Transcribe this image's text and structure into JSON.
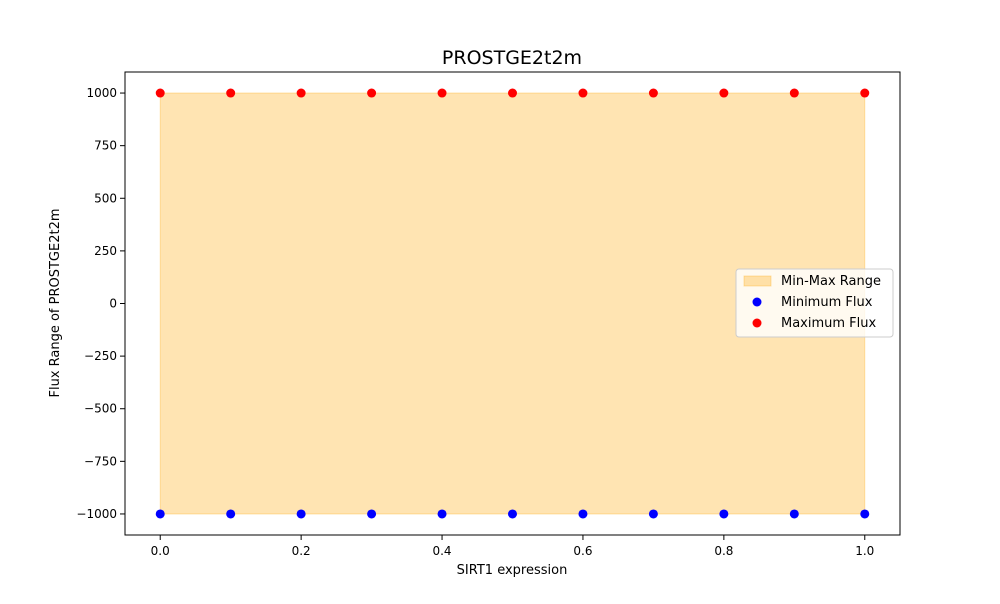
{
  "chart_data": {
    "type": "scatter",
    "title": "PROSTGE2t2m",
    "xlabel": "SIRT1 expression",
    "ylabel": "Flux Range of PROSTGE2t2m",
    "xlim": [
      -0.05,
      1.05
    ],
    "ylim": [
      -1100,
      1100
    ],
    "x_ticks": [
      0.0,
      0.2,
      0.4,
      0.6,
      0.8,
      1.0
    ],
    "x_tick_labels": [
      "0.0",
      "0.2",
      "0.4",
      "0.6",
      "0.8",
      "1.0"
    ],
    "y_ticks": [
      -1000,
      -750,
      -500,
      -250,
      0,
      250,
      500,
      750,
      1000
    ],
    "y_tick_labels": [
      "−1000",
      "−750",
      "−500",
      "−250",
      "0",
      "250",
      "500",
      "750",
      "1000"
    ],
    "x": [
      0.0,
      0.1,
      0.2,
      0.3,
      0.4,
      0.5,
      0.6,
      0.7,
      0.8,
      0.9,
      1.0
    ],
    "series": [
      {
        "name": "Minimum Flux",
        "kind": "scatter",
        "color": "#0000ff",
        "values": [
          -1000,
          -1000,
          -1000,
          -1000,
          -1000,
          -1000,
          -1000,
          -1000,
          -1000,
          -1000,
          -1000
        ]
      },
      {
        "name": "Maximum Flux",
        "kind": "scatter",
        "color": "#ff0000",
        "values": [
          1000,
          1000,
          1000,
          1000,
          1000,
          1000,
          1000,
          1000,
          1000,
          1000,
          1000
        ]
      }
    ],
    "fill": {
      "name": "Min-Max Range",
      "color": "#ffa500",
      "alpha": 0.3
    },
    "legend": {
      "position": "center-right",
      "entries": [
        "Min-Max Range",
        "Minimum Flux",
        "Maximum Flux"
      ]
    },
    "grid": false
  }
}
